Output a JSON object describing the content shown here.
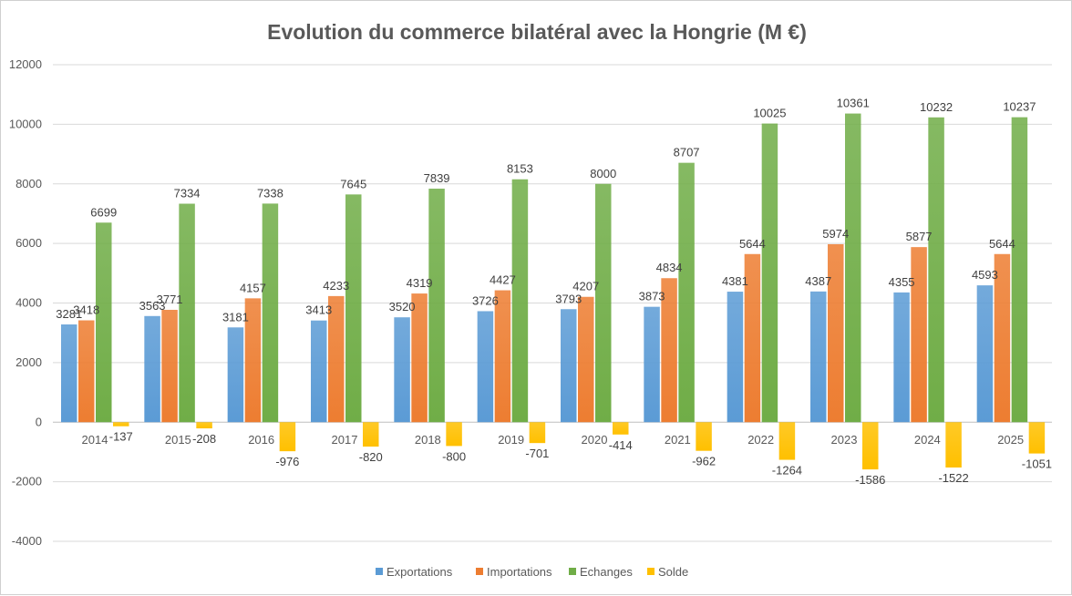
{
  "chart_data": {
    "type": "bar",
    "title": "Evolution du commerce bilatéral avec la Hongrie (M €)",
    "xlabel": "",
    "ylabel": "",
    "ylim": [
      -4000,
      12000
    ],
    "yticks": [
      -4000,
      -2000,
      0,
      2000,
      4000,
      6000,
      8000,
      10000,
      12000
    ],
    "grid": true,
    "legend_position": "bottom",
    "categories": [
      "2014",
      "2015",
      "2016",
      "2017",
      "2018",
      "2019",
      "2020",
      "2021",
      "2022",
      "2023",
      "2024",
      "2025"
    ],
    "series": [
      {
        "name": "Exportations",
        "color": "#5B9BD5",
        "values": [
          3281,
          3563,
          3181,
          3413,
          3520,
          3726,
          3793,
          3873,
          4381,
          4387,
          4355,
          4593
        ]
      },
      {
        "name": "Importations",
        "color": "#ED7D31",
        "values": [
          3418,
          3771,
          4157,
          4233,
          4319,
          4427,
          4207,
          4834,
          5644,
          5974,
          5877,
          5644
        ]
      },
      {
        "name": "Echanges",
        "color": "#70AD47",
        "values": [
          6699,
          7334,
          7338,
          7645,
          7839,
          8153,
          8000,
          8707,
          10025,
          10361,
          10232,
          10237
        ]
      },
      {
        "name": "Solde",
        "color": "#FFC000",
        "values": [
          -137,
          -208,
          -976,
          -820,
          -800,
          -701,
          -414,
          -962,
          -1264,
          -1586,
          -1522,
          -1051
        ]
      }
    ]
  }
}
